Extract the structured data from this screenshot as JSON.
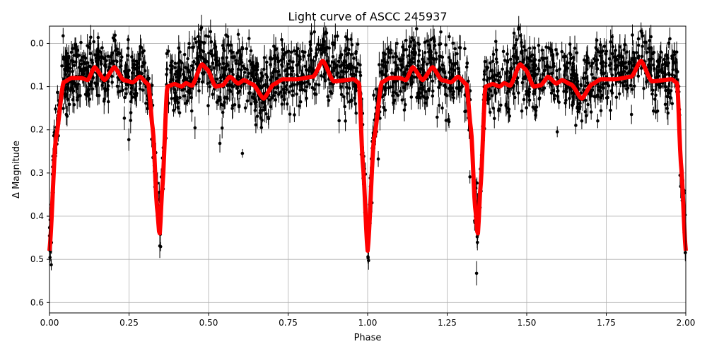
{
  "chart_data": {
    "type": "scatter",
    "title": "Light curve of ASCC 245937",
    "xlabel": "Phase",
    "ylabel": "Δ Magnitude",
    "xlim": [
      0,
      2.0
    ],
    "ylim": [
      0.624,
      -0.04
    ],
    "y_inverted": true,
    "grid": true,
    "x_ticks": [
      "0.00",
      "0.25",
      "0.50",
      "0.75",
      "1.00",
      "1.25",
      "1.50",
      "1.75",
      "2.00"
    ],
    "y_ticks": [
      "0.0",
      "0.1",
      "0.2",
      "0.3",
      "0.4",
      "0.5",
      "0.6"
    ],
    "series": [
      {
        "kind": "observations with error bars",
        "color": "#000000",
        "typical_scatter": 0.04
      },
      {
        "kind": "model curve",
        "color": "#ff0000",
        "repeats_every_phase": 1,
        "x": [
          0,
          0.02,
          0.044,
          0.07,
          0.1,
          0.12,
          0.142,
          0.173,
          0.204,
          0.233,
          0.262,
          0.284,
          0.311,
          0.325,
          0.338,
          0.346,
          0.355,
          0.37,
          0.393,
          0.415,
          0.429,
          0.448,
          0.479,
          0.496,
          0.522,
          0.544,
          0.567,
          0.593,
          0.611,
          0.64,
          0.673,
          0.704,
          0.733,
          0.778,
          0.829,
          0.859,
          0.893,
          0.956,
          0.973,
          0.985,
          1.0
        ],
        "y": [
          0.48,
          0.22,
          0.09,
          0.08,
          0.08,
          0.085,
          0.055,
          0.085,
          0.055,
          0.085,
          0.09,
          0.077,
          0.095,
          0.2,
          0.38,
          0.445,
          0.33,
          0.1,
          0.094,
          0.1,
          0.092,
          0.098,
          0.048,
          0.06,
          0.1,
          0.097,
          0.077,
          0.093,
          0.085,
          0.095,
          0.128,
          0.095,
          0.083,
          0.083,
          0.077,
          0.04,
          0.088,
          0.083,
          0.092,
          0.28,
          0.48
        ]
      }
    ]
  }
}
